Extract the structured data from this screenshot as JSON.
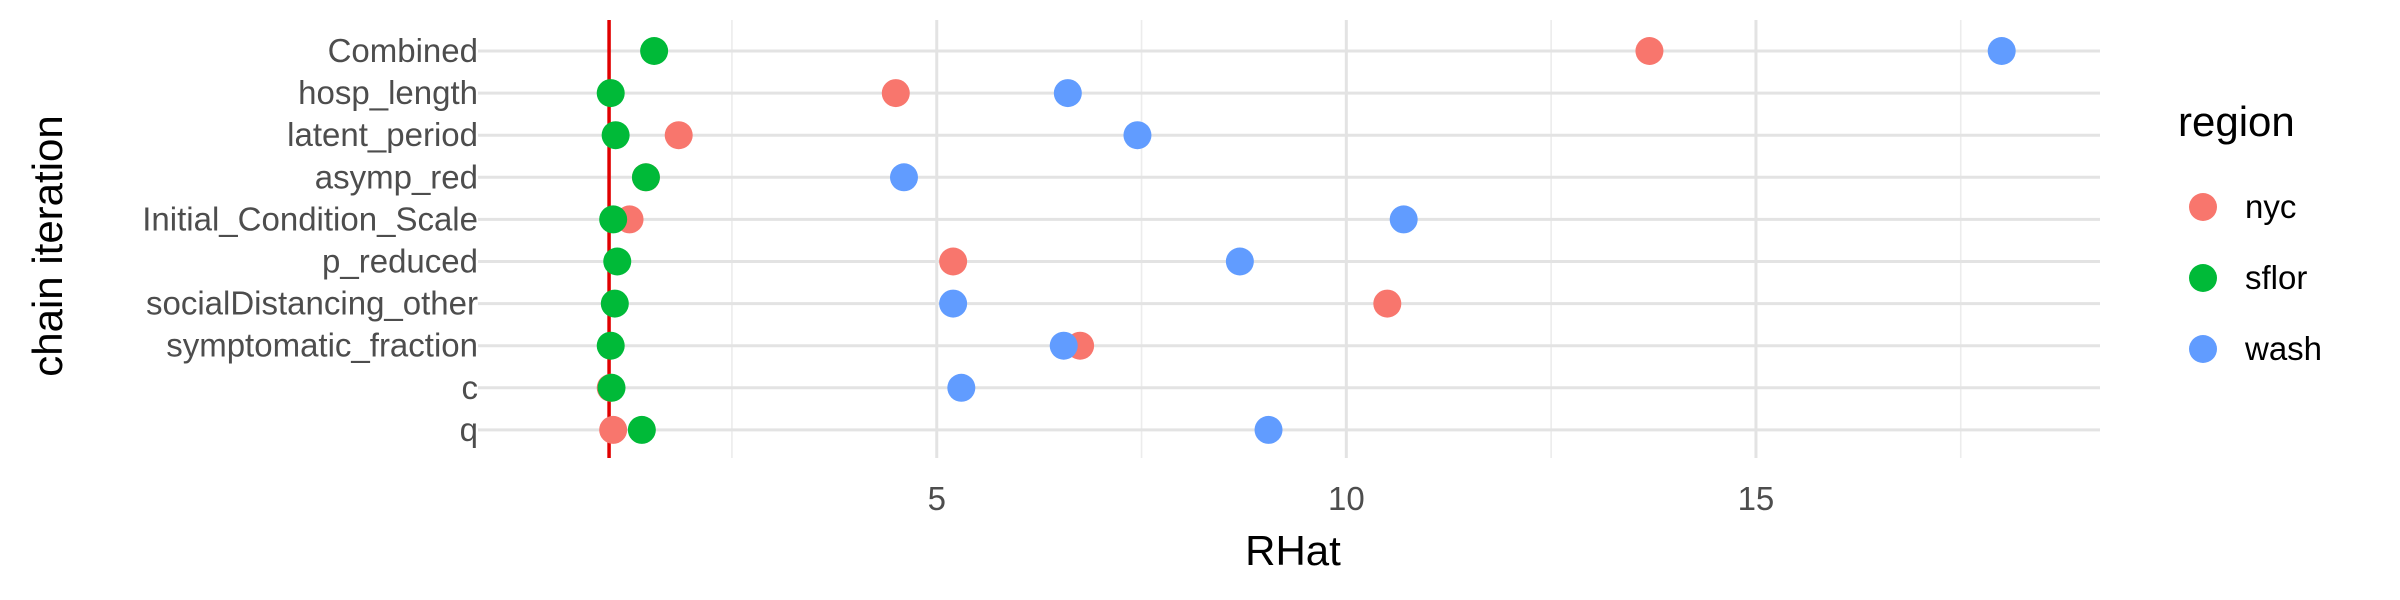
{
  "chart_data": {
    "type": "scatter",
    "title": "",
    "xlabel": "RHat",
    "ylabel": "chain iteration",
    "xlim": [
      -0.6,
      19.2
    ],
    "x_ticks": [
      5,
      10,
      15
    ],
    "x_tick_labels": [
      "5",
      "10",
      "15"
    ],
    "categories": [
      "Combined",
      "hosp_length",
      "latent_period",
      "asymp_red",
      "Initial_Condition_Scale",
      "p_reduced",
      "socialDistancing_other",
      "symptomatic_fraction",
      "c",
      "q"
    ],
    "reference_line": {
      "x": 1.0,
      "color": "#e00000"
    },
    "grid": true,
    "legend": {
      "title": "region",
      "position": "right"
    },
    "series": [
      {
        "name": "nyc",
        "color": "#F8766D",
        "values": [
          13.7,
          4.5,
          1.85,
          1.45,
          1.25,
          5.2,
          10.5,
          6.75,
          1.02,
          1.05
        ]
      },
      {
        "name": "sflor",
        "color": "#00BA38",
        "values": [
          1.55,
          1.02,
          1.08,
          1.45,
          1.05,
          1.1,
          1.07,
          1.02,
          1.03,
          1.4
        ]
      },
      {
        "name": "wash",
        "color": "#619CFF",
        "values": [
          18.0,
          6.6,
          7.45,
          4.6,
          10.7,
          8.7,
          5.2,
          6.55,
          5.3,
          9.05
        ]
      }
    ]
  }
}
